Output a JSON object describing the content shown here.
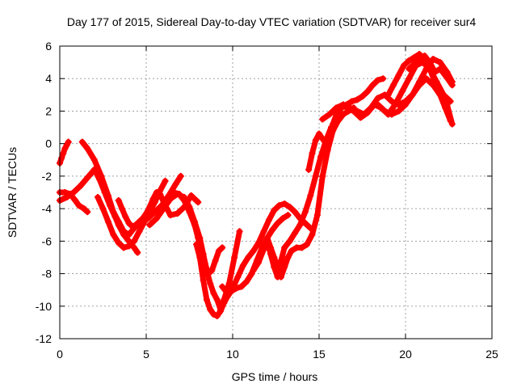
{
  "chart_data": {
    "type": "scatter",
    "title": "Day 177 of 2015, Sidereal Day-to-day VTEC variation (SDTVAR) for receiver sur4",
    "xlabel": "GPS time / hours",
    "ylabel": "SDTVAR / TECUs",
    "xlim": [
      0,
      25
    ],
    "ylim": [
      -12,
      6
    ],
    "xticks": [
      0,
      5,
      10,
      15,
      20,
      25
    ],
    "yticks": [
      -12,
      -10,
      -8,
      -6,
      -4,
      -2,
      0,
      2,
      4,
      6
    ],
    "xtick_labels": [
      "0",
      "5",
      "10",
      "15",
      "20",
      "25"
    ],
    "ytick_labels": [
      "-12",
      "-10",
      "-8",
      "-6",
      "-4",
      "-2",
      "0",
      "2",
      "4",
      "6"
    ],
    "grid": true,
    "marker": "+",
    "colors": {
      "series": "#ff0000",
      "axes": "#000000",
      "grid": "#a0a0a0"
    },
    "series": [
      {
        "x": [
          0.0,
          0.1,
          0.2,
          0.3,
          0.4,
          0.5
        ],
        "y": [
          -1.2,
          -0.9,
          -0.6,
          -0.3,
          -0.1,
          0.1
        ]
      },
      {
        "x": [
          0.0,
          0.4,
          0.8,
          1.2,
          1.6,
          2.0,
          2.3,
          2.6,
          2.9,
          3.2,
          3.4,
          3.7,
          4.0,
          4.3,
          4.5
        ],
        "y": [
          -3.5,
          -3.3,
          -3.0,
          -2.6,
          -2.1,
          -1.6,
          -2.2,
          -3.0,
          -3.8,
          -4.5,
          -5.0,
          -5.6,
          -6.0,
          -6.4,
          -6.7
        ]
      },
      {
        "x": [
          0.0,
          0.3,
          0.6,
          0.9,
          1.1,
          1.4,
          1.6
        ],
        "y": [
          -3.0,
          -3.0,
          -3.1,
          -3.5,
          -3.8,
          -4.0,
          -4.2
        ]
      },
      {
        "x": [
          1.3,
          1.6,
          2.0,
          2.4,
          2.8,
          3.1,
          3.4,
          3.7,
          4.0,
          4.3,
          4.7,
          5.1,
          5.5,
          5.9,
          6.3,
          6.7,
          7.0
        ],
        "y": [
          0.1,
          -0.3,
          -1.0,
          -2.0,
          -3.2,
          -4.2,
          -4.8,
          -5.4,
          -5.6,
          -5.2,
          -4.8,
          -4.6,
          -4.2,
          -3.8,
          -3.2,
          -2.5,
          -2.0
        ]
      },
      {
        "x": [
          2.2,
          2.5,
          2.8,
          3.1,
          3.4,
          3.7,
          4.0,
          4.3,
          4.6,
          4.9,
          5.2,
          5.5,
          5.8,
          6.1
        ],
        "y": [
          -3.3,
          -4.0,
          -4.8,
          -5.6,
          -6.1,
          -6.4,
          -6.3,
          -6.0,
          -5.4,
          -4.8,
          -4.2,
          -3.6,
          -2.9,
          -2.3
        ]
      },
      {
        "x": [
          3.4,
          3.6,
          3.8,
          4.0,
          4.2,
          4.4,
          4.6,
          4.8,
          5.0,
          5.2,
          5.4,
          5.6,
          5.8,
          6.1,
          6.4,
          6.8,
          7.2,
          7.6,
          8.0
        ],
        "y": [
          -3.5,
          -4.0,
          -4.5,
          -4.9,
          -5.1,
          -5.0,
          -4.8,
          -4.6,
          -4.3,
          -3.9,
          -3.4,
          -3.0,
          -3.1,
          -3.8,
          -4.4,
          -4.3,
          -3.9,
          -3.2,
          -3.6
        ]
      },
      {
        "x": [
          5.2,
          5.6,
          6.0,
          6.4,
          6.8,
          7.2,
          7.5,
          7.8,
          8.1,
          8.3,
          8.5,
          8.7,
          8.9,
          9.1,
          9.3,
          9.5,
          9.8,
          10.1,
          10.4
        ],
        "y": [
          -5.0,
          -4.6,
          -4.0,
          -3.4,
          -3.1,
          -3.3,
          -3.9,
          -4.8,
          -5.8,
          -6.8,
          -7.8,
          -8.6,
          -9.2,
          -9.6,
          -10.2,
          -9.6,
          -8.6,
          -7.0,
          -5.4
        ]
      },
      {
        "x": [
          6.6,
          6.9,
          7.2,
          7.5,
          7.8,
          8.0,
          8.2,
          8.4,
          8.6,
          8.8,
          9.0,
          9.2,
          9.4
        ],
        "y": [
          -3.0,
          -3.1,
          -3.5,
          -4.2,
          -5.0,
          -5.8,
          -6.6,
          -7.4,
          -8.0,
          -7.8,
          -7.2,
          -6.6,
          -6.4
        ]
      },
      {
        "x": [
          7.9,
          8.1,
          8.3,
          8.5,
          8.7,
          8.9,
          9.1,
          9.3,
          9.5,
          9.7,
          9.9,
          10.2,
          10.5,
          10.8,
          11.1,
          11.4,
          11.7,
          12.0,
          12.3,
          12.6,
          12.9,
          13.2
        ],
        "y": [
          -6.2,
          -7.0,
          -8.4,
          -9.6,
          -10.2,
          -10.5,
          -10.6,
          -10.3,
          -9.8,
          -9.4,
          -9.1,
          -8.9,
          -8.8,
          -8.5,
          -8.0,
          -7.2,
          -6.4,
          -5.8,
          -5.3,
          -4.9,
          -4.6,
          -4.4
        ]
      },
      {
        "x": [
          9.4,
          9.7,
          10.0,
          10.3,
          10.6,
          10.9,
          11.2,
          11.5,
          11.8,
          12.1,
          12.4,
          12.7,
          13.0,
          13.3,
          13.6,
          13.9,
          14.2,
          14.5
        ],
        "y": [
          -8.8,
          -9.2,
          -8.9,
          -8.2,
          -7.5,
          -7.0,
          -6.6,
          -6.1,
          -5.4,
          -4.7,
          -4.1,
          -3.8,
          -3.7,
          -3.9,
          -4.2,
          -4.6,
          -4.9,
          -5.2
        ]
      },
      {
        "x": [
          11.2,
          11.5,
          11.8,
          12.0,
          12.2,
          12.4,
          12.6,
          12.8,
          13.0,
          13.3,
          13.6,
          13.9,
          14.2,
          14.5,
          14.8,
          15.1,
          15.4,
          15.7
        ],
        "y": [
          -7.8,
          -7.3,
          -6.5,
          -6.0,
          -6.8,
          -7.6,
          -8.2,
          -7.2,
          -6.4,
          -6.0,
          -5.5,
          -5.0,
          -4.2,
          -3.2,
          -2.0,
          -0.8,
          0.2,
          1.0
        ]
      },
      {
        "x": [
          12.0,
          12.2,
          12.4,
          12.6,
          12.8,
          13.0,
          13.2,
          13.4,
          13.7,
          14.0,
          14.3,
          14.6,
          14.9,
          15.2,
          15.5,
          15.8,
          16.1,
          16.4,
          16.7,
          17.0
        ],
        "y": [
          -5.8,
          -6.4,
          -7.0,
          -7.6,
          -8.2,
          -7.6,
          -7.0,
          -6.6,
          -6.4,
          -6.4,
          -6.2,
          -5.6,
          -4.4,
          -2.0,
          -0.4,
          0.8,
          1.4,
          1.8,
          2.0,
          2.2
        ]
      },
      {
        "x": [
          14.4,
          14.6,
          14.8,
          15.0,
          15.2,
          15.4,
          15.6,
          15.8,
          16.0,
          16.3,
          16.6,
          16.9,
          17.2,
          17.5,
          17.8,
          18.1,
          18.4,
          18.7
        ],
        "y": [
          -1.6,
          -0.6,
          0.2,
          0.6,
          0.3,
          0.0,
          0.4,
          1.2,
          1.8,
          2.2,
          2.4,
          2.6,
          2.7,
          2.9,
          3.2,
          3.6,
          3.9,
          4.0
        ]
      },
      {
        "x": [
          15.2,
          15.6,
          16.0,
          16.4,
          16.8,
          17.2,
          17.6,
          18.0,
          18.4,
          18.8,
          19.2,
          19.6,
          20.0,
          20.4,
          20.8,
          21.2,
          21.6,
          22.0,
          22.4,
          22.7
        ],
        "y": [
          1.5,
          1.8,
          2.2,
          2.4,
          2.2,
          2.0,
          1.8,
          2.2,
          2.8,
          3.0,
          2.6,
          2.4,
          2.6,
          3.0,
          3.6,
          4.0,
          3.6,
          3.0,
          2.4,
          1.2
        ]
      },
      {
        "x": [
          16.6,
          17.0,
          17.4,
          17.8,
          18.2,
          18.6,
          19.0,
          19.4,
          19.8,
          20.2,
          20.6,
          21.0,
          21.4,
          21.8,
          22.2,
          22.6
        ],
        "y": [
          2.2,
          2.0,
          1.6,
          1.9,
          2.4,
          2.2,
          1.8,
          2.4,
          3.2,
          4.0,
          4.8,
          5.0,
          4.6,
          3.8,
          3.0,
          2.6
        ]
      },
      {
        "x": [
          18.4,
          18.8,
          19.2,
          19.6,
          20.0,
          20.4,
          20.8,
          21.2,
          21.6,
          22.0,
          22.4,
          22.7
        ],
        "y": [
          2.4,
          2.0,
          1.8,
          2.0,
          2.4,
          3.0,
          3.8,
          4.6,
          5.2,
          5.0,
          4.4,
          3.8
        ]
      },
      {
        "x": [
          19.0,
          19.3,
          19.6,
          19.9,
          20.2,
          20.5,
          20.8,
          21.1,
          21.4,
          21.7,
          22.0,
          22.3,
          22.6
        ],
        "y": [
          3.0,
          3.6,
          4.2,
          4.8,
          5.1,
          5.3,
          5.5,
          5.2,
          4.6,
          3.8,
          3.0,
          2.2,
          1.4
        ]
      },
      {
        "x": [
          20.2,
          20.5,
          20.8,
          21.1,
          21.4,
          21.7,
          22.0,
          22.3,
          22.7
        ],
        "y": [
          4.6,
          4.9,
          5.2,
          5.4,
          5.0,
          4.4,
          4.6,
          4.2,
          3.6
        ]
      }
    ]
  }
}
